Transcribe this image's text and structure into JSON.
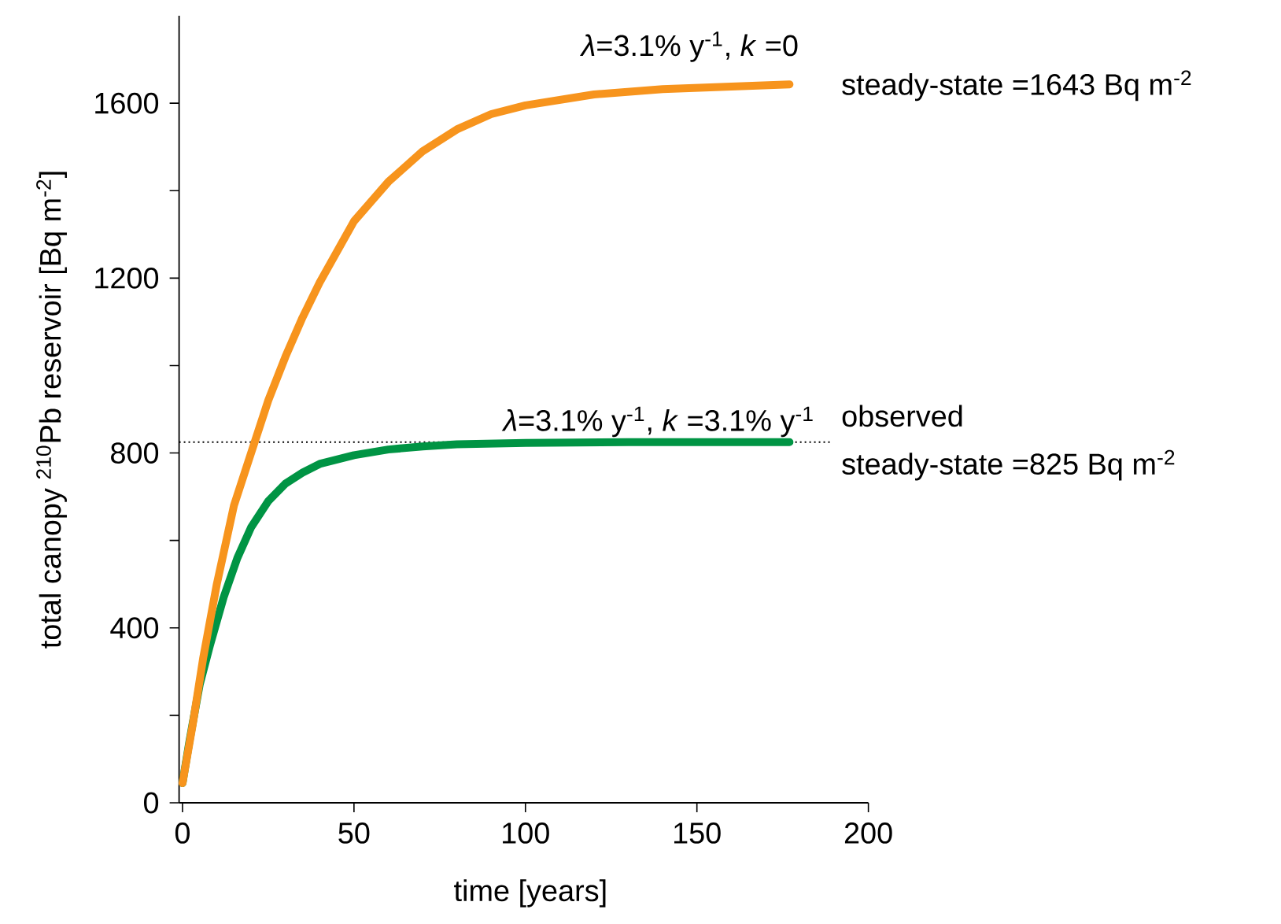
{
  "chart_data": {
    "type": "line",
    "xlabel": "time [years]",
    "ylabel": "total canopy $^{210}$Pb reservoir [Bq m$^{-2}$]",
    "xlim": [
      -1,
      200
    ],
    "xticks": [
      0,
      50,
      100,
      150,
      200
    ],
    "ylim": [
      0,
      1800
    ],
    "yticks": [
      0,
      {
        "value": 200,
        "label": null
      },
      400,
      {
        "value": 600,
        "label": null
      },
      800,
      {
        "value": 1000,
        "label": null
      },
      1200,
      {
        "value": 1400,
        "label": null
      },
      1600
    ],
    "grid": false,
    "legend": false,
    "marker": "none",
    "line_style": "solid",
    "series": [
      {
        "name": "*λ*=3.1% y$^{-1}$, *k* =0",
        "color": "#f7941d",
        "x": [
          0,
          3,
          6,
          10,
          15,
          20,
          25,
          30,
          35,
          40,
          50,
          60,
          70,
          80,
          90,
          100,
          120,
          140,
          160,
          177
        ],
        "values": [
          45,
          180,
          330,
          500,
          680,
          800,
          920,
          1020,
          1110,
          1190,
          1330,
          1420,
          1490,
          1540,
          1575,
          1595,
          1620,
          1632,
          1638,
          1643
        ]
      },
      {
        "name": "*λ*=3.1% y$^{-1}$, *k* =3.1% y$^{-1}$",
        "color": "#009444",
        "x": [
          0,
          2,
          5,
          8,
          12,
          16,
          20,
          25,
          30,
          35,
          40,
          50,
          60,
          70,
          80,
          100,
          130,
          177
        ],
        "values": [
          45,
          140,
          270,
          360,
          470,
          560,
          630,
          690,
          730,
          755,
          775,
          795,
          808,
          815,
          820,
          823,
          825,
          825
        ]
      }
    ],
    "ref_lines": [
      {
        "axis": "y",
        "value": 825,
        "color": "#000000",
        "line_style": "dotted"
      }
    ],
    "annotations": [
      "steady-state  =1643 Bq m$^{-2}$",
      "observed",
      "steady-state =825 Bq m$^{-2}$"
    ]
  }
}
